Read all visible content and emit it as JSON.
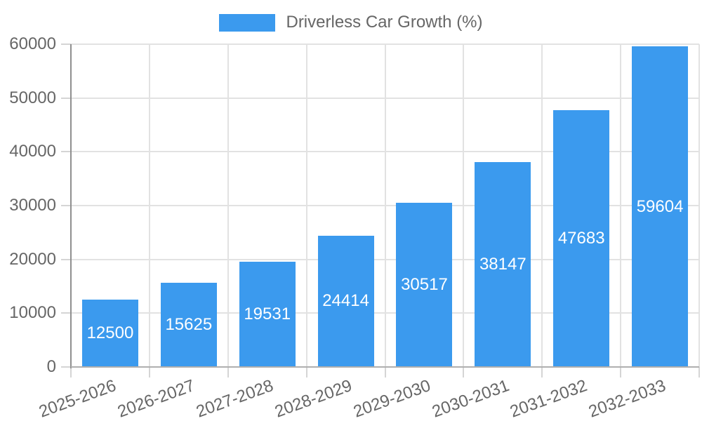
{
  "chart_data": {
    "type": "bar",
    "title": "",
    "legend": {
      "label": "Driverless Car Growth (%)",
      "position": "top"
    },
    "categories": [
      "2025-2026",
      "2026-2027",
      "2027-2028",
      "2028-2029",
      "2029-2030",
      "2030-2031",
      "2031-2032",
      "2032-2033"
    ],
    "values": [
      12500,
      15625,
      19531,
      24414,
      30517,
      38147,
      47683,
      59604
    ],
    "value_labels": [
      "12500",
      "15625",
      "19531",
      "24414",
      "30517",
      "38147",
      "47683",
      "59604"
    ],
    "xlabel": "",
    "ylabel": "",
    "ylim": [
      0,
      60000
    ],
    "yticks": [
      "0",
      "10000",
      "20000",
      "30000",
      "40000",
      "50000",
      "60000"
    ],
    "grid": true,
    "legend_position": "top-center",
    "style": {
      "bar_color": "#3B9AEE",
      "grid_color": "#E2E2E2",
      "y_axis_color": "#8F8F8F",
      "x_axis_color": "#AFAFAF",
      "tick_mark_color": "#D5D5D5",
      "tick_text_color": "#666666",
      "legend_text_color": "#666666",
      "value_text_color": "#FFFFFF",
      "background": "#FFFFFF"
    }
  }
}
